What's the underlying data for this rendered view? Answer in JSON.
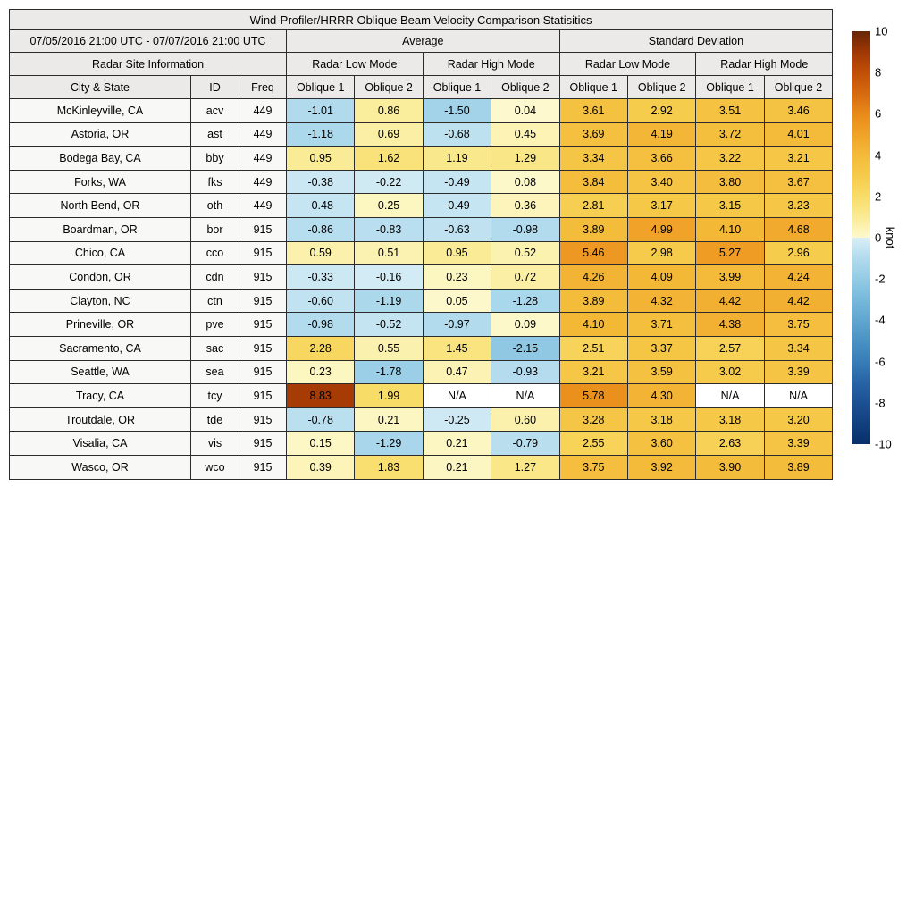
{
  "title": "Wind-Profiler/HRRR Oblique Beam Velocity Comparison Statisitics",
  "header": {
    "date_range": "07/05/2016 21:00 UTC - 07/07/2016 21:00 UTC",
    "average_label": "Average",
    "std_label": "Standard Deviation",
    "site_info_label": "Radar Site Information",
    "mode_labels": [
      "Radar Low Mode",
      "Radar High Mode",
      "Radar Low Mode",
      "Radar High Mode"
    ],
    "city_col": "City & State",
    "id_col": "ID",
    "freq_col": "Freq",
    "oblique_cols": [
      "Oblique 1",
      "Oblique 2",
      "Oblique 1",
      "Oblique 2",
      "Oblique 1",
      "Oblique 2",
      "Oblique 1",
      "Oblique 2"
    ]
  },
  "chart_data": {
    "type": "heatmap",
    "title": "Wind-Profiler/HRRR Oblique Beam Velocity Comparison Statisitics",
    "period": "07/05/2016 21:00 UTC - 07/07/2016 21:00 UTC",
    "value_unit": "knot",
    "column_groups": [
      "Average / Radar Low Mode",
      "Average / Radar High Mode",
      "Standard Deviation / Radar Low Mode",
      "Standard Deviation / Radar High Mode"
    ],
    "value_columns": [
      "Avg Low Oblique 1",
      "Avg Low Oblique 2",
      "Avg High Oblique 1",
      "Avg High Oblique 2",
      "Std Low Oblique 1",
      "Std Low Oblique 2",
      "Std High Oblique 1",
      "Std High Oblique 2"
    ],
    "rows": [
      {
        "city": "McKinleyville, CA",
        "id": "acv",
        "freq": "449",
        "values": [
          "-1.01",
          "0.86",
          "-1.50",
          "0.04",
          "3.61",
          "2.92",
          "3.51",
          "3.46"
        ]
      },
      {
        "city": "Astoria, OR",
        "id": "ast",
        "freq": "449",
        "values": [
          "-1.18",
          "0.69",
          "-0.68",
          "0.45",
          "3.69",
          "4.19",
          "3.72",
          "4.01"
        ]
      },
      {
        "city": "Bodega Bay, CA",
        "id": "bby",
        "freq": "449",
        "values": [
          "0.95",
          "1.62",
          "1.19",
          "1.29",
          "3.34",
          "3.66",
          "3.22",
          "3.21"
        ]
      },
      {
        "city": "Forks, WA",
        "id": "fks",
        "freq": "449",
        "values": [
          "-0.38",
          "-0.22",
          "-0.49",
          "0.08",
          "3.84",
          "3.40",
          "3.80",
          "3.67"
        ]
      },
      {
        "city": "North Bend, OR",
        "id": "oth",
        "freq": "449",
        "values": [
          "-0.48",
          "0.25",
          "-0.49",
          "0.36",
          "2.81",
          "3.17",
          "3.15",
          "3.23"
        ]
      },
      {
        "city": "Boardman, OR",
        "id": "bor",
        "freq": "915",
        "values": [
          "-0.86",
          "-0.83",
          "-0.63",
          "-0.98",
          "3.89",
          "4.99",
          "4.10",
          "4.68"
        ]
      },
      {
        "city": "Chico, CA",
        "id": "cco",
        "freq": "915",
        "values": [
          "0.59",
          "0.51",
          "0.95",
          "0.52",
          "5.46",
          "2.98",
          "5.27",
          "2.96"
        ]
      },
      {
        "city": "Condon, OR",
        "id": "cdn",
        "freq": "915",
        "values": [
          "-0.33",
          "-0.16",
          "0.23",
          "0.72",
          "4.26",
          "4.09",
          "3.99",
          "4.24"
        ]
      },
      {
        "city": "Clayton, NC",
        "id": "ctn",
        "freq": "915",
        "values": [
          "-0.60",
          "-1.19",
          "0.05",
          "-1.28",
          "3.89",
          "4.32",
          "4.42",
          "4.42"
        ]
      },
      {
        "city": "Prineville, OR",
        "id": "pve",
        "freq": "915",
        "values": [
          "-0.98",
          "-0.52",
          "-0.97",
          "0.09",
          "4.10",
          "3.71",
          "4.38",
          "3.75"
        ]
      },
      {
        "city": "Sacramento, CA",
        "id": "sac",
        "freq": "915",
        "values": [
          "2.28",
          "0.55",
          "1.45",
          "-2.15",
          "2.51",
          "3.37",
          "2.57",
          "3.34"
        ]
      },
      {
        "city": "Seattle, WA",
        "id": "sea",
        "freq": "915",
        "values": [
          "0.23",
          "-1.78",
          "0.47",
          "-0.93",
          "3.21",
          "3.59",
          "3.02",
          "3.39"
        ]
      },
      {
        "city": "Tracy, CA",
        "id": "tcy",
        "freq": "915",
        "values": [
          "8.83",
          "1.99",
          "N/A",
          "N/A",
          "5.78",
          "4.30",
          "N/A",
          "N/A"
        ]
      },
      {
        "city": "Troutdale, OR",
        "id": "tde",
        "freq": "915",
        "values": [
          "-0.78",
          "0.21",
          "-0.25",
          "0.60",
          "3.28",
          "3.18",
          "3.18",
          "3.20"
        ]
      },
      {
        "city": "Visalia, CA",
        "id": "vis",
        "freq": "915",
        "values": [
          "0.15",
          "-1.29",
          "0.21",
          "-0.79",
          "2.55",
          "3.60",
          "2.63",
          "3.39"
        ]
      },
      {
        "city": "Wasco, OR",
        "id": "wco",
        "freq": "915",
        "values": [
          "0.39",
          "1.83",
          "0.21",
          "1.27",
          "3.75",
          "3.92",
          "3.90",
          "3.89"
        ]
      }
    ],
    "colorbar": {
      "label": "knot",
      "min": -10,
      "max": 10,
      "ticks": [
        "10",
        "8",
        "6",
        "4",
        "2",
        "0",
        "-2",
        "-4",
        "-6",
        "-8",
        "-10"
      ],
      "pos_anchors": [
        [
          253,
          249,
          207
        ],
        [
          250,
          235,
          148
        ],
        [
          248,
          220,
          104
        ],
        [
          246,
          203,
          75
        ],
        [
          244,
          186,
          57
        ],
        [
          240,
          163,
          40
        ],
        [
          232,
          138,
          26
        ],
        [
          214,
          105,
          14
        ],
        [
          193,
          79,
          7
        ],
        [
          160,
          55,
          5
        ],
        [
          102,
          37,
          6
        ]
      ],
      "neg_anchors": [
        [
          217,
          238,
          246
        ],
        [
          177,
          219,
          237
        ],
        [
          148,
          203,
          229
        ],
        [
          118,
          185,
          219
        ],
        [
          96,
          166,
          208
        ],
        [
          73,
          146,
          196
        ],
        [
          55,
          125,
          184
        ],
        [
          40,
          100,
          166
        ],
        [
          28,
          80,
          148
        ],
        [
          18,
          64,
          127
        ],
        [
          8,
          48,
          107
        ]
      ],
      "na_color": "#ffffff"
    }
  }
}
